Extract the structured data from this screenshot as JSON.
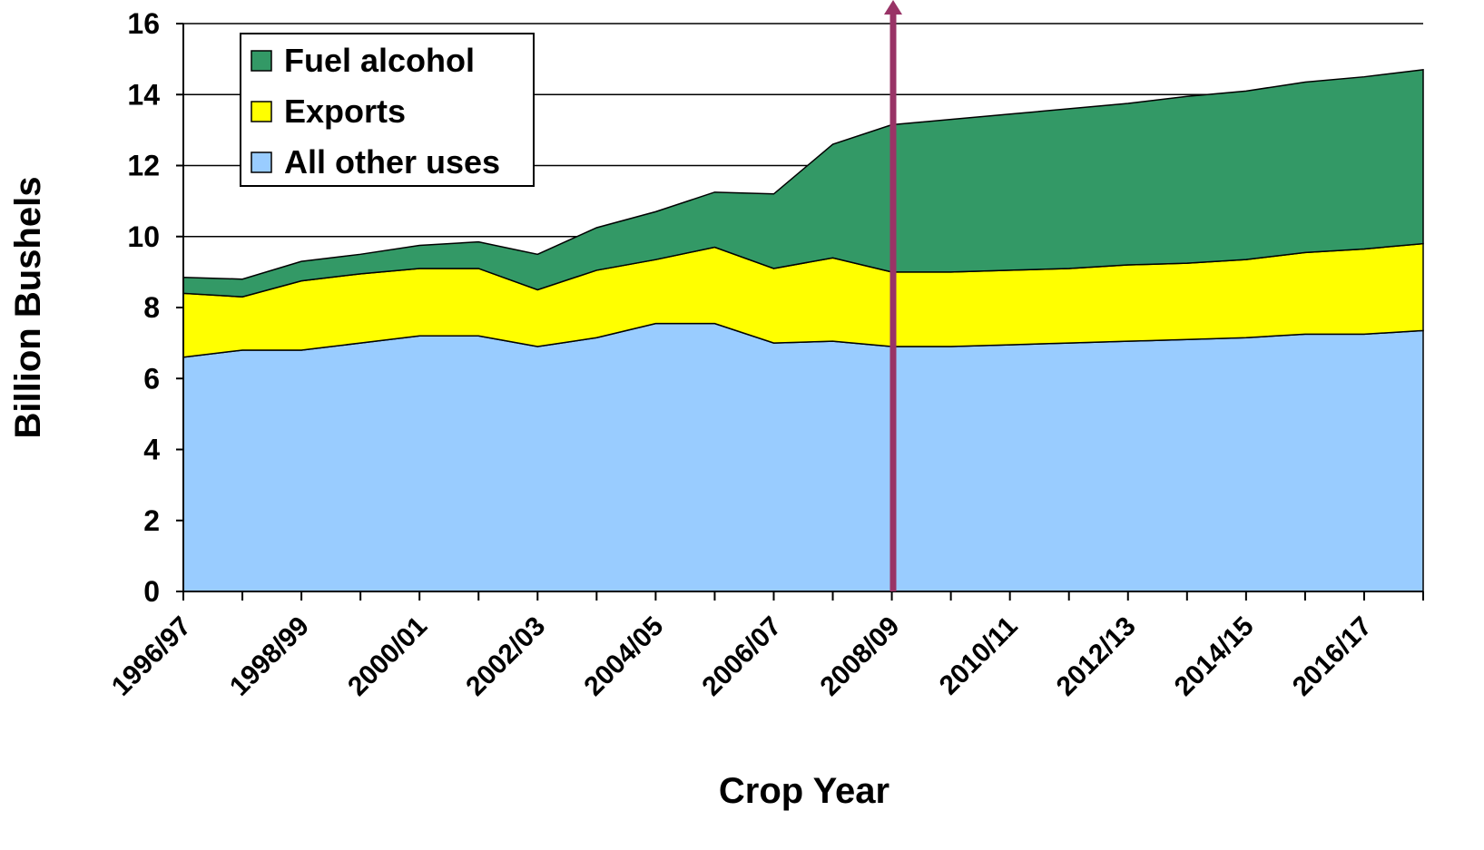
{
  "chart_data": {
    "type": "stacked-area",
    "xlabel": "Crop Year",
    "ylabel": "Billion Bushels",
    "categories": [
      "1996/97",
      null,
      "1998/99",
      null,
      "2000/01",
      null,
      "2002/03",
      null,
      "2004/05",
      null,
      "2006/07",
      null,
      "2008/09",
      null,
      "2010/11",
      null,
      "2012/13",
      null,
      "2014/15",
      null,
      "2016/17",
      null
    ],
    "series": [
      {
        "name": "All other uses",
        "color": "#99ccff",
        "values": [
          6.6,
          6.8,
          6.8,
          7.0,
          7.2,
          7.2,
          6.9,
          7.15,
          7.55,
          7.55,
          7.0,
          7.05,
          6.9,
          6.9,
          6.95,
          7.0,
          7.05,
          7.1,
          7.15,
          7.25,
          7.25,
          7.35
        ]
      },
      {
        "name": "Exports",
        "color": "#ffff00",
        "values": [
          1.8,
          1.5,
          1.95,
          1.95,
          1.9,
          1.9,
          1.6,
          1.9,
          1.8,
          2.15,
          2.1,
          2.35,
          2.1,
          2.1,
          2.1,
          2.1,
          2.15,
          2.15,
          2.2,
          2.3,
          2.4,
          2.45
        ]
      },
      {
        "name": "Fuel alcohol",
        "color": "#339966",
        "values": [
          0.45,
          0.5,
          0.55,
          0.55,
          0.65,
          0.75,
          1.0,
          1.2,
          1.35,
          1.55,
          2.1,
          3.2,
          4.15,
          4.3,
          4.4,
          4.5,
          4.55,
          4.7,
          4.75,
          4.8,
          4.85,
          4.9
        ]
      }
    ],
    "ylim": [
      0,
      16
    ],
    "yticks": [
      0,
      2,
      4,
      6,
      8,
      10,
      12,
      14,
      16
    ],
    "grid": true,
    "legend": "upper left"
  }
}
